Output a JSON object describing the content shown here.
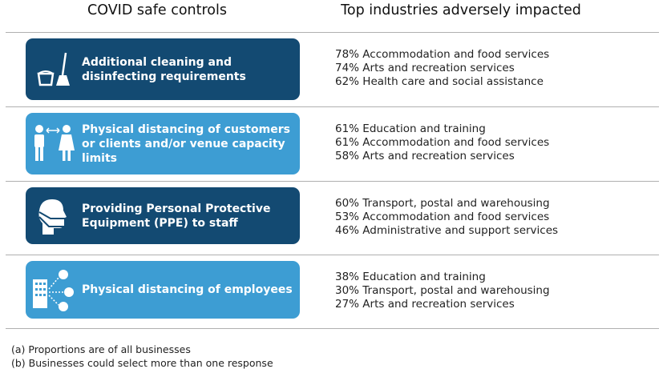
{
  "headers": {
    "controls": "COVID safe controls",
    "industries": "Top industries adversely impacted"
  },
  "colors": {
    "dark": "#134a72",
    "light": "#3d9dd3"
  },
  "rows": [
    {
      "label": "Additional cleaning and disinfecting requirements",
      "icon": "bucket-mop-icon",
      "style": "dark",
      "industries": [
        "78% Accommodation and food services",
        "74% Arts and recreation services",
        "62% Health care and social assistance"
      ]
    },
    {
      "label": "Physical distancing of customers or clients and/or venue capacity limits",
      "icon": "people-distance-icon",
      "style": "light",
      "industries": [
        "61% Education and training",
        "61% Accommodation and food services",
        "58% Arts and recreation services"
      ]
    },
    {
      "label": "Providing Personal Protective Equipment (PPE) to staff",
      "icon": "face-mask-icon",
      "style": "dark",
      "industries": [
        "60% Transport, postal and warehousing",
        "53% Accommodation and food services",
        "46% Administrative and support services"
      ]
    },
    {
      "label": "Physical distancing of employees",
      "icon": "building-employees-icon",
      "style": "light",
      "industries": [
        "38% Education and training",
        "30% Transport, postal and warehousing",
        "27% Arts and recreation services"
      ]
    }
  ],
  "footnotes": [
    "(a) Proportions are of all businesses",
    "(b) Businesses could select more than one response"
  ]
}
